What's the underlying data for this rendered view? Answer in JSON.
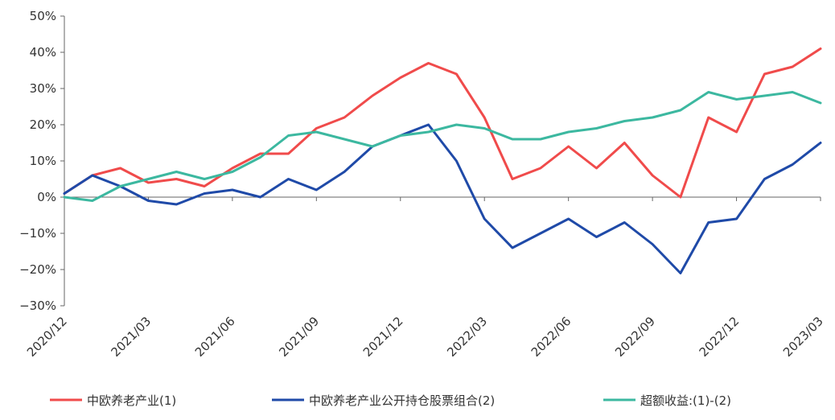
{
  "chart_data": {
    "type": "line",
    "title": "",
    "xlabel": "",
    "ylabel": "",
    "ylim": [
      -30,
      50
    ],
    "y_ticks": [
      "50%",
      "40%",
      "30%",
      "20%",
      "10%",
      "0%",
      "−10%",
      "−20%",
      "−30%"
    ],
    "x_ticks": [
      "2020/12",
      "2021/03",
      "2021/06",
      "2021/09",
      "2021/12",
      "2022/03",
      "2022/06",
      "2022/09",
      "2022/12",
      "2023/03"
    ],
    "grid": false,
    "legend_position": "bottom",
    "series": [
      {
        "name": "中欧养老产业(1)",
        "color": "#f04b4b",
        "x": [
          "2020/12",
          "2021/01",
          "2021/02",
          "2021/03",
          "2021/04",
          "2021/05",
          "2021/06",
          "2021/07",
          "2021/08",
          "2021/09",
          "2021/10",
          "2021/11",
          "2021/12",
          "2022/01",
          "2022/02",
          "2022/03",
          "2022/04",
          "2022/05",
          "2022/06",
          "2022/07",
          "2022/08",
          "2022/09",
          "2022/10",
          "2022/11",
          "2022/12",
          "2023/01",
          "2023/02",
          "2023/03"
        ],
        "values": [
          1,
          6,
          8,
          4,
          5,
          3,
          8,
          12,
          12,
          19,
          22,
          28,
          33,
          37,
          34,
          22,
          5,
          8,
          14,
          8,
          15,
          6,
          0,
          22,
          18,
          34,
          36,
          41
        ]
      },
      {
        "name": "中欧养老产业公开持仓股票组合(2)",
        "color": "#1f4aa8",
        "x": [
          "2020/12",
          "2021/01",
          "2021/02",
          "2021/03",
          "2021/04",
          "2021/05",
          "2021/06",
          "2021/07",
          "2021/08",
          "2021/09",
          "2021/10",
          "2021/11",
          "2021/12",
          "2022/01",
          "2022/02",
          "2022/03",
          "2022/04",
          "2022/05",
          "2022/06",
          "2022/07",
          "2022/08",
          "2022/09",
          "2022/10",
          "2022/11",
          "2022/12",
          "2023/01",
          "2023/02",
          "2023/03"
        ],
        "values": [
          1,
          6,
          3,
          -1,
          -2,
          1,
          2,
          0,
          5,
          2,
          7,
          14,
          17,
          20,
          10,
          -6,
          -14,
          -10,
          -6,
          -11,
          -7,
          -13,
          -21,
          -7,
          -6,
          5,
          9,
          15
        ]
      },
      {
        "name": "超额收益:(1)-(2)",
        "color": "#3cb8a0",
        "x": [
          "2020/12",
          "2021/01",
          "2021/02",
          "2021/03",
          "2021/04",
          "2021/05",
          "2021/06",
          "2021/07",
          "2021/08",
          "2021/09",
          "2021/10",
          "2021/11",
          "2021/12",
          "2022/01",
          "2022/02",
          "2022/03",
          "2022/04",
          "2022/05",
          "2022/06",
          "2022/07",
          "2022/08",
          "2022/09",
          "2022/10",
          "2022/11",
          "2022/12",
          "2023/01",
          "2023/02",
          "2023/03"
        ],
        "values": [
          0,
          -1,
          3,
          5,
          7,
          5,
          7,
          11,
          17,
          18,
          16,
          14,
          17,
          18,
          20,
          19,
          16,
          16,
          18,
          19,
          21,
          22,
          24,
          29,
          27,
          28,
          29,
          26
        ]
      }
    ]
  }
}
